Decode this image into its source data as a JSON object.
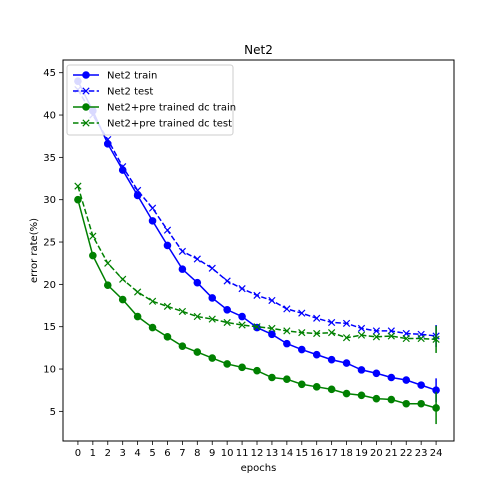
{
  "chart_data": {
    "type": "line",
    "title": "Net2",
    "xlabel": "epochs",
    "ylabel": "error rate(%)",
    "xlim": [
      -1,
      25.2
    ],
    "ylim": [
      1.5,
      46.5
    ],
    "x": [
      0,
      1,
      2,
      3,
      4,
      5,
      6,
      7,
      8,
      9,
      10,
      11,
      12,
      13,
      14,
      15,
      16,
      17,
      18,
      19,
      20,
      21,
      22,
      23,
      24
    ],
    "xticks": [
      "0",
      "1",
      "2",
      "3",
      "4",
      "5",
      "6",
      "7",
      "8",
      "9",
      "10",
      "11",
      "12",
      "13",
      "14",
      "15",
      "16",
      "17",
      "18",
      "19",
      "20",
      "21",
      "22",
      "23",
      "24"
    ],
    "yticks": [
      5,
      10,
      15,
      20,
      25,
      30,
      35,
      40,
      45
    ],
    "ytick_labels": [
      "5",
      "10",
      "15",
      "20",
      "25",
      "30",
      "35",
      "40",
      "45"
    ],
    "legend_position": "top-left",
    "series": [
      {
        "name": "Net2 train",
        "color": "#0000ff",
        "dash": "solid",
        "marker": "circle",
        "values": [
          44.0,
          40.5,
          36.6,
          33.5,
          30.5,
          27.5,
          24.6,
          21.8,
          20.2,
          18.4,
          17.0,
          16.2,
          14.9,
          14.1,
          13.0,
          12.3,
          11.7,
          11.1,
          10.7,
          9.9,
          9.5,
          9.0,
          8.7,
          8.1,
          7.5
        ],
        "error_last": 1.4
      },
      {
        "name": "Net2 test",
        "color": "#0000ff",
        "dash": "dashed",
        "marker": "x",
        "values": [
          43.0,
          40.0,
          37.1,
          33.9,
          31.1,
          29.0,
          26.4,
          23.9,
          23.0,
          21.9,
          20.4,
          19.5,
          18.7,
          18.1,
          17.1,
          16.6,
          16.0,
          15.5,
          15.4,
          14.8,
          14.5,
          14.5,
          14.2,
          14.1,
          13.9
        ],
        "error_last": 1.3
      },
      {
        "name": "Net2+pre trained dc train",
        "color": "#008000",
        "dash": "solid",
        "marker": "circle",
        "values": [
          30.0,
          23.4,
          19.9,
          18.2,
          16.2,
          14.9,
          13.8,
          12.7,
          12.0,
          11.3,
          10.6,
          10.2,
          9.8,
          9.0,
          8.8,
          8.2,
          7.9,
          7.6,
          7.1,
          6.9,
          6.5,
          6.4,
          5.9,
          5.9,
          5.4
        ],
        "error_last": 1.9
      },
      {
        "name": "Net2+pre trained dc test",
        "color": "#008000",
        "dash": "dashed",
        "marker": "x",
        "values": [
          31.6,
          25.7,
          22.5,
          20.6,
          19.1,
          18.0,
          17.4,
          16.8,
          16.2,
          15.9,
          15.5,
          15.2,
          15.0,
          14.8,
          14.5,
          14.3,
          14.2,
          14.3,
          13.7,
          14.0,
          13.8,
          13.9,
          13.6,
          13.6,
          13.5
        ],
        "error_last": 1.6
      }
    ]
  }
}
